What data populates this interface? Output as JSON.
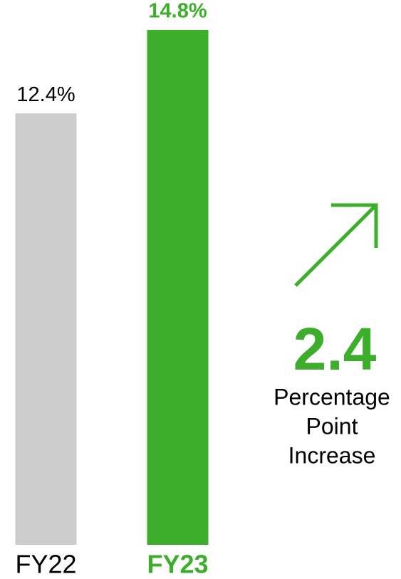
{
  "chart_data": {
    "type": "bar",
    "categories": [
      "FY22",
      "FY23"
    ],
    "values": [
      12.4,
      14.8
    ],
    "value_labels": [
      "12.4%",
      "14.8%"
    ],
    "colors": [
      "#cccccc",
      "#3dae2b"
    ],
    "label_colors": [
      "#000000",
      "#3dae2b"
    ],
    "annotation": {
      "headline": "2.4",
      "lines": [
        "Percentage",
        "Point",
        "Increase"
      ],
      "color": "#3dae2b"
    }
  }
}
